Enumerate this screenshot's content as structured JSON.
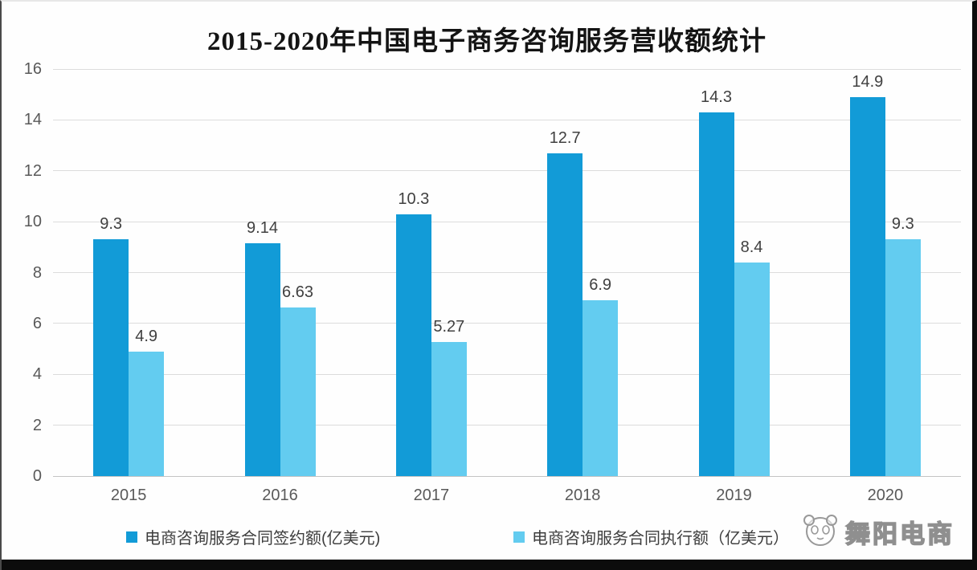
{
  "title": "2015-2020年中国电子商务咨询服务营收额统计",
  "watermark": {
    "label": "舞阳电商"
  },
  "colors": {
    "series1": "#129bd7",
    "series2": "#63ccf0",
    "grid": "#dcdcdc",
    "axis_text": "#595959",
    "value_text": "#404040"
  },
  "chart_data": {
    "type": "bar",
    "title": "2015-2020年中国电子商务咨询服务营收额统计",
    "categories": [
      "2015",
      "2016",
      "2017",
      "2018",
      "2019",
      "2020"
    ],
    "series": [
      {
        "name": "电商咨询服务合同签约额(亿美元)",
        "color": "#129bd7",
        "values": [
          9.3,
          9.14,
          10.3,
          12.7,
          14.3,
          14.9
        ]
      },
      {
        "name": "电商咨询服务合同执行额（亿美元）",
        "color": "#63ccf0",
        "values": [
          4.9,
          6.63,
          5.27,
          6.9,
          8.4,
          9.3
        ]
      }
    ],
    "xlabel": "",
    "ylabel": "",
    "ylim": [
      0,
      16
    ],
    "yticks": [
      0,
      2,
      4,
      6,
      8,
      10,
      12,
      14,
      16
    ],
    "grid": true,
    "legend_position": "bottom"
  }
}
